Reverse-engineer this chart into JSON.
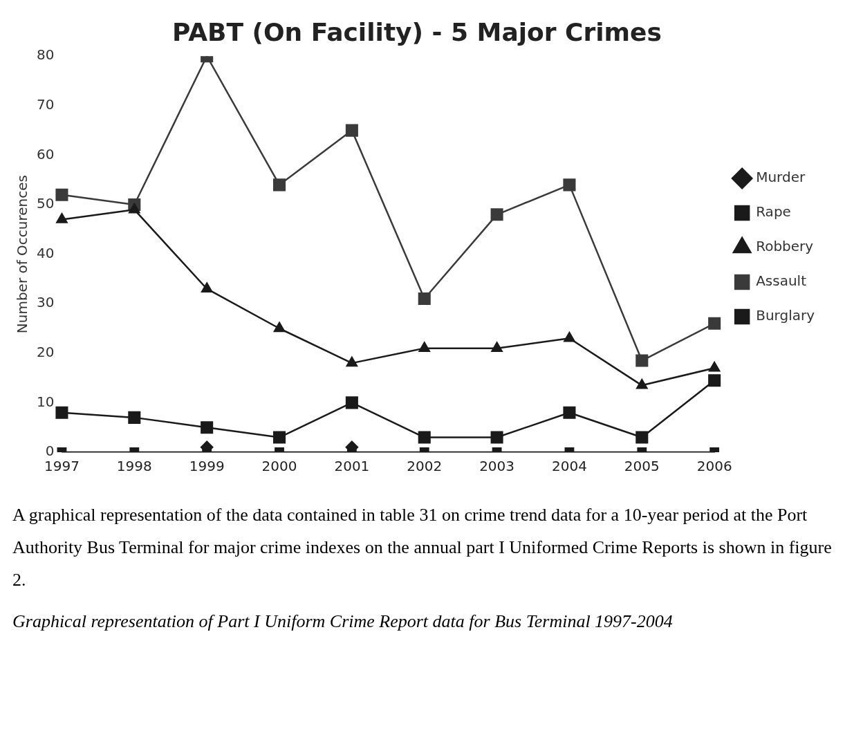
{
  "chart_data": {
    "type": "line",
    "title": "PABT (On Facility) - 5 Major Crimes",
    "ylabel": "Number of Occurences",
    "categories": [
      "1997",
      "1998",
      "1999",
      "2000",
      "2001",
      "2002",
      "2003",
      "2004",
      "2005",
      "2006"
    ],
    "ylim": [
      0,
      80
    ],
    "yticks": [
      0,
      10,
      20,
      30,
      40,
      50,
      60,
      70,
      80
    ],
    "legend": "right",
    "series": [
      {
        "name": "Murder",
        "color": "#1a1a1a",
        "marker": "diamond",
        "values": [
          null,
          null,
          1,
          null,
          1,
          null,
          null,
          null,
          null,
          null
        ]
      },
      {
        "name": "Rape",
        "color": "#1a1a1a",
        "marker": "square",
        "values": [
          0,
          0,
          0,
          0,
          0,
          0,
          0,
          0,
          0,
          0
        ]
      },
      {
        "name": "Robbery",
        "color": "#1a1a1a",
        "marker": "triangle",
        "values": [
          47,
          49,
          33,
          25,
          18,
          21,
          21,
          23,
          13.5,
          17
        ]
      },
      {
        "name": "Assault",
        "color": "#3a3a3a",
        "marker": "square",
        "values": [
          52,
          50,
          80,
          54,
          65,
          31,
          48,
          54,
          18.5,
          26
        ]
      },
      {
        "name": "Burglary",
        "color": "#1a1a1a",
        "marker": "square",
        "values": [
          8,
          7,
          5,
          3,
          10,
          3,
          3,
          8,
          3,
          14.5
        ]
      }
    ],
    "annotations": [
      "A graphical representation of the data contained in table 31 on crime trend data for a 10-year period at the Port Authority Bus Terminal for major crime indexes on the annual part I Uniformed Crime Reports is shown in figure 2.",
      "Graphical representation of Part I Uniform Crime Report data for Bus Terminal 1997-2004"
    ]
  }
}
